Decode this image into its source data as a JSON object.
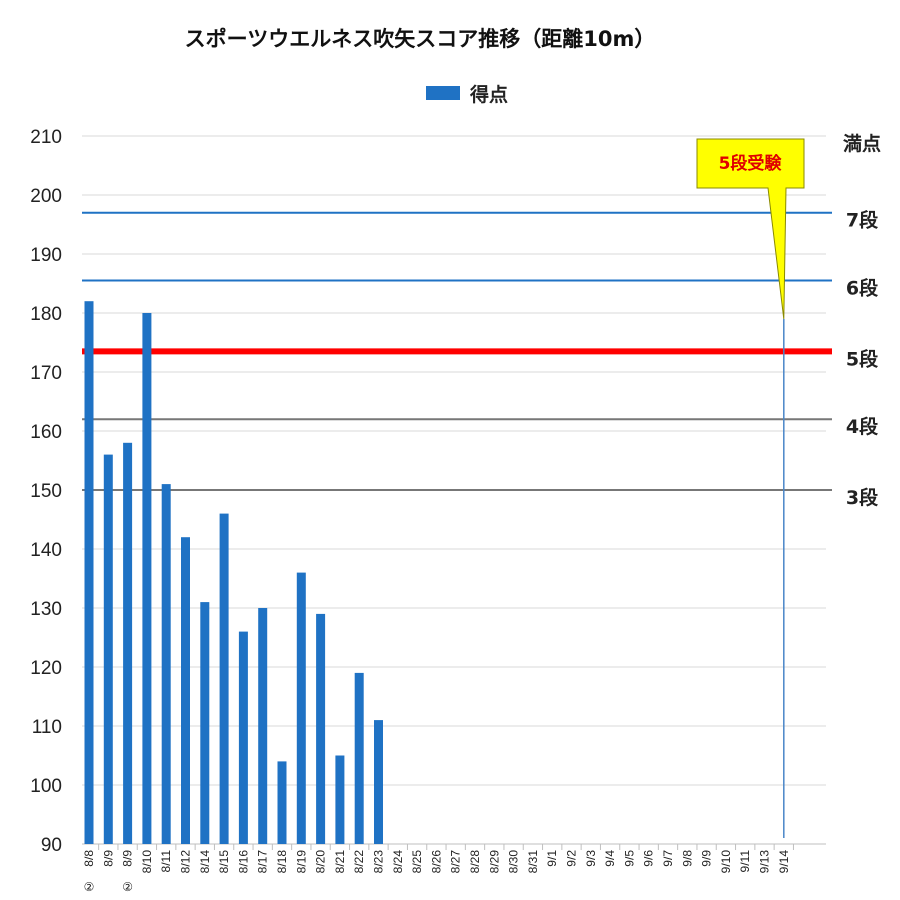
{
  "chart_data": {
    "type": "bar",
    "title": "スポーツウエルネス吹矢スコア推移（距離10m）",
    "legend": {
      "label": "得点",
      "placement": "top-center"
    },
    "ylim": [
      90,
      210
    ],
    "yticks": [
      210,
      200,
      190,
      180,
      170,
      160,
      150,
      140,
      130,
      120,
      110,
      100,
      90
    ],
    "grid": true,
    "categories": [
      "8/8②",
      "8/9",
      "8/9②",
      "8/10",
      "8/11",
      "8/12",
      "8/14",
      "8/15",
      "8/16",
      "8/17",
      "8/18",
      "8/19",
      "8/20",
      "8/21",
      "8/22",
      "8/23",
      "8/24",
      "8/25",
      "8/26",
      "8/27",
      "8/28",
      "8/29",
      "8/30",
      "8/31",
      "9/1",
      "9/2",
      "9/3",
      "9/4",
      "9/5",
      "9/6",
      "9/7",
      "9/8",
      "9/9",
      "9/10",
      "9/11",
      "9/13",
      "9/14"
    ],
    "series": [
      {
        "name": "得点",
        "color": "#1f72c4",
        "values": [
          182,
          156,
          158,
          180,
          151,
          142,
          131,
          146,
          126,
          130,
          104,
          136,
          129,
          105,
          119,
          111,
          null,
          null,
          null,
          null,
          null,
          null,
          null,
          null,
          null,
          null,
          null,
          null,
          null,
          null,
          null,
          null,
          null,
          null,
          null,
          null,
          null
        ]
      }
    ],
    "thresholds": [
      {
        "label": "満点",
        "value": 210,
        "color": "#d0d0d0"
      },
      {
        "label": "7段",
        "value": 197,
        "color": "#1f72c4"
      },
      {
        "label": "6段",
        "value": 185.5,
        "color": "#1f72c4"
      },
      {
        "label": "5段",
        "value": 173.5,
        "color": "#ff0000",
        "label_color": "#ff0000"
      },
      {
        "label": "4段",
        "value": 162,
        "color": "#777777"
      },
      {
        "label": "3段",
        "value": 150,
        "color": "#777777"
      }
    ],
    "annotation": {
      "text": "5段受験",
      "category": "9/14",
      "value": 179,
      "box_color": "#ffff00"
    }
  }
}
